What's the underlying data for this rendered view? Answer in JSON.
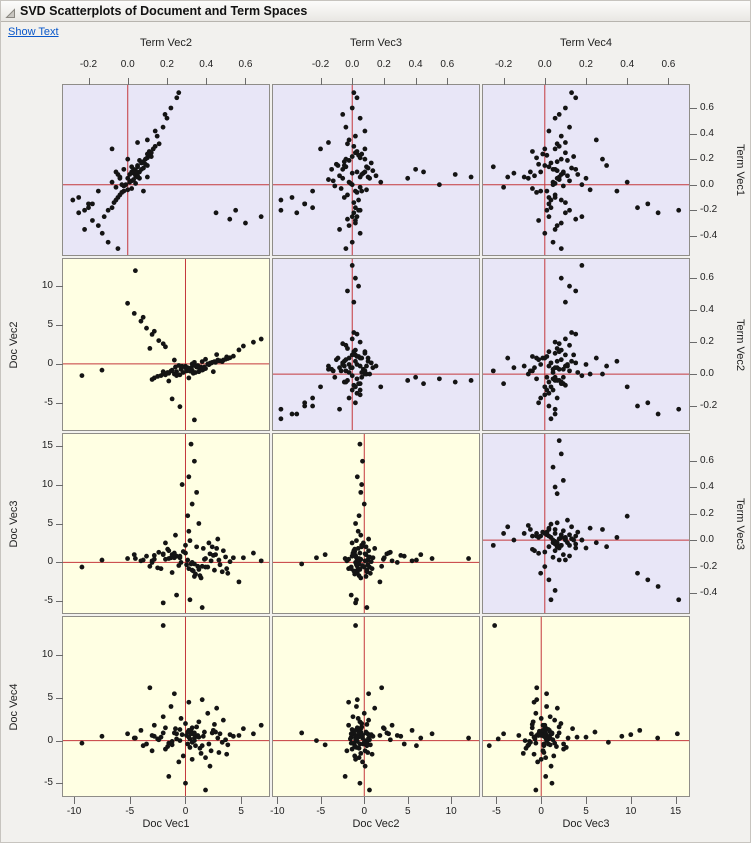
{
  "header": {
    "title": "SVD Scatterplots of Document and Term Spaces",
    "show_text_link": "Show Text"
  },
  "icons": {
    "disclosure": "triangle-lower-right"
  },
  "colors": {
    "term_panel_bg": "#e8e6f7",
    "doc_panel_bg": "#ffffe3",
    "panel_border": "#8f8d88",
    "ref_line": "#c4383c",
    "point": "#141414",
    "link": "#0a58ca",
    "window_bg": "#f2f1ee"
  },
  "chart_data": {
    "type": "scatter",
    "subtype": "scatter-matrix",
    "title": "SVD Scatterplots of Document and Term Spaces",
    "legend": "none",
    "grid": false,
    "reference_lines": {
      "x": 0,
      "y": 0
    },
    "axes": {
      "top": [
        {
          "title": "Term Vec2",
          "range": [
            -0.33,
            0.72
          ],
          "ticks": [
            -0.2,
            0,
            0.2,
            0.4,
            0.6
          ],
          "decimals": 1
        },
        {
          "title": "Term Vec3",
          "range": [
            -0.5,
            0.8
          ],
          "ticks": [
            -0.2,
            0,
            0.2,
            0.4,
            0.6
          ],
          "decimals": 1
        },
        {
          "title": "Term Vec4",
          "range": [
            -0.3,
            0.7
          ],
          "ticks": [
            -0.2,
            0,
            0.2,
            0.4,
            0.6
          ],
          "decimals": 1
        }
      ],
      "bottom": [
        {
          "title": "Doc Vec1",
          "range": [
            -11,
            7.5
          ],
          "ticks": [
            -10,
            -5,
            0,
            5
          ],
          "decimals": 0
        },
        {
          "title": "Doc Vec2",
          "range": [
            -10.5,
            13.2
          ],
          "ticks": [
            -10,
            -5,
            0,
            5,
            10
          ],
          "decimals": 0
        },
        {
          "title": "Doc Vec3",
          "range": [
            -6.5,
            16.5
          ],
          "ticks": [
            -5,
            0,
            5,
            10,
            15
          ],
          "decimals": 0
        }
      ],
      "right": [
        {
          "title": "Term Vec1",
          "range": [
            -0.55,
            0.78
          ],
          "ticks": [
            0.6,
            0.4,
            0.2,
            0,
            -0.2,
            -0.4
          ],
          "decimals": 1
        },
        {
          "title": "Term Vec2",
          "range": [
            -0.35,
            0.72
          ],
          "ticks": [
            0.6,
            0.4,
            0.2,
            0,
            -0.2
          ],
          "decimals": 1
        },
        {
          "title": "Term Vec3",
          "range": [
            -0.55,
            0.8
          ],
          "ticks": [
            0.6,
            0.4,
            0.2,
            0,
            -0.2,
            -0.4
          ],
          "decimals": 1
        }
      ],
      "left": [
        {
          "title": "Doc Vec2",
          "range": [
            -8.5,
            13.5
          ],
          "ticks": [
            10,
            5,
            0,
            -5
          ],
          "decimals": 0
        },
        {
          "title": "Doc Vec3",
          "range": [
            -6.5,
            16.5
          ],
          "ticks": [
            15,
            10,
            5,
            0,
            -5
          ],
          "decimals": 0
        },
        {
          "title": "Doc Vec4",
          "range": [
            -6.5,
            14.5
          ],
          "ticks": [
            10,
            5,
            0,
            -5
          ],
          "decimals": 0
        }
      ]
    },
    "term_vector_labels": [
      "Term Vec1",
      "Term Vec2",
      "Term Vec3",
      "Term Vec4"
    ],
    "doc_vector_labels": [
      "Doc Vec1",
      "Doc Vec2",
      "Doc Vec3",
      "Doc Vec4"
    ],
    "term_points": [
      [
        0.02,
        0.01,
        -0.02,
        0.04
      ],
      [
        0.1,
        0.06,
        0.03,
        -0.02
      ],
      [
        0.18,
        0.08,
        -0.05,
        0.06
      ],
      [
        -0.05,
        -0.02,
        0.06,
        0.01
      ],
      [
        0.25,
        0.12,
        0.02,
        0.1
      ],
      [
        0.07,
        0.04,
        -0.08,
        -0.05
      ],
      [
        -0.12,
        -0.06,
        0.04,
        0.08
      ],
      [
        0.14,
        0.05,
        0.09,
        0.02
      ],
      [
        0.03,
        0.02,
        -0.12,
        0.12
      ],
      [
        0.21,
        0.1,
        0.05,
        -0.04
      ],
      [
        -0.08,
        -0.04,
        -0.03,
        0.05
      ],
      [
        0.3,
        0.14,
        0.01,
        0.07
      ],
      [
        0.05,
        0.0,
        0.11,
        -0.08
      ],
      [
        0.12,
        0.07,
        -0.06,
        0.15
      ],
      [
        -0.18,
        -0.08,
        0.02,
        0.03
      ],
      [
        0.09,
        0.03,
        0.07,
        0.09
      ],
      [
        0.16,
        0.09,
        -0.1,
        -0.03
      ],
      [
        0.0,
        -0.01,
        0.0,
        0.18
      ],
      [
        0.23,
        0.11,
        0.04,
        0.01
      ],
      [
        -0.03,
        0.02,
        -0.07,
        -0.06
      ],
      [
        0.11,
        0.04,
        0.13,
        0.06
      ],
      [
        0.19,
        0.06,
        -0.02,
        0.11
      ],
      [
        0.06,
        0.05,
        0.05,
        -0.1
      ],
      [
        -0.1,
        -0.05,
        -0.05,
        0.02
      ],
      [
        0.28,
        0.13,
        0.08,
        0.05
      ],
      [
        0.04,
        0.03,
        -0.15,
        0.07
      ],
      [
        0.13,
        0.08,
        0.1,
        0.13
      ],
      [
        -0.06,
        -0.03,
        0.03,
        -0.04
      ],
      [
        0.2,
        0.09,
        -0.04,
        0.08
      ],
      [
        0.08,
        0.01,
        0.06,
        0.16
      ],
      [
        0.15,
        0.1,
        -0.09,
        0.0
      ],
      [
        -0.14,
        -0.07,
        0.01,
        0.1
      ],
      [
        0.26,
        0.11,
        0.03,
        -0.06
      ],
      [
        0.01,
        0.04,
        -0.01,
        0.05
      ],
      [
        0.17,
        0.07,
        0.12,
        0.03
      ],
      [
        -0.01,
        -0.02,
        -0.11,
        0.09
      ],
      [
        0.22,
        0.12,
        0.0,
        0.14
      ],
      [
        0.1,
        0.02,
        0.08,
        -0.07
      ],
      [
        0.05,
        0.06,
        -0.06,
        0.2
      ],
      [
        -0.2,
        -0.1,
        0.05,
        0.01
      ],
      [
        0.32,
        0.16,
        -0.03,
        0.06
      ],
      [
        0.07,
        0.05,
        0.15,
        0.11
      ],
      [
        0.12,
        0.03,
        -0.13,
        0.04
      ],
      [
        -0.04,
        0.0,
        0.09,
        0.22
      ],
      [
        0.24,
        0.1,
        0.06,
        -0.01
      ],
      [
        0.38,
        0.15,
        0.02,
        0.08
      ],
      [
        0.45,
        0.18,
        -0.04,
        0.12
      ],
      [
        0.52,
        0.2,
        0.05,
        0.05
      ],
      [
        0.6,
        0.22,
        0.0,
        0.1
      ],
      [
        0.68,
        0.25,
        0.03,
        0.15
      ],
      [
        0.72,
        0.26,
        0.01,
        0.13
      ],
      [
        0.42,
        0.14,
        0.08,
        0.02
      ],
      [
        0.55,
        0.19,
        -0.06,
        0.07
      ],
      [
        -0.25,
        -0.12,
        0.03,
        0.02
      ],
      [
        -0.32,
        -0.15,
        -0.02,
        0.06
      ],
      [
        -0.38,
        -0.13,
        0.05,
        0.0
      ],
      [
        -0.45,
        -0.1,
        0.0,
        0.04
      ],
      [
        -0.5,
        -0.05,
        -0.04,
        0.08
      ],
      [
        -0.28,
        -0.18,
        0.02,
        -0.03
      ],
      [
        -0.35,
        -0.22,
        -0.08,
        0.05
      ],
      [
        -0.22,
        0.45,
        0.01,
        0.1
      ],
      [
        -0.27,
        0.52,
        -0.03,
        0.15
      ],
      [
        -0.3,
        0.6,
        0.02,
        0.08
      ],
      [
        -0.25,
        0.68,
        0.0,
        0.18
      ],
      [
        -0.2,
        0.55,
        0.04,
        0.12
      ],
      [
        0.05,
        -0.04,
        0.35,
        0.06
      ],
      [
        0.1,
        -0.06,
        0.45,
        0.09
      ],
      [
        0.0,
        -0.03,
        0.55,
        0.04
      ],
      [
        0.08,
        -0.05,
        0.65,
        0.08
      ],
      [
        0.12,
        -0.02,
        0.4,
        0.05
      ],
      [
        0.06,
        -0.04,
        0.75,
        0.07
      ],
      [
        -0.15,
        -0.2,
        -0.3,
        0.02
      ],
      [
        -0.1,
        -0.25,
        -0.38,
        0.05
      ],
      [
        -0.05,
        -0.15,
        -0.25,
        -0.02
      ],
      [
        -0.12,
        -0.28,
        -0.45,
        0.03
      ],
      [
        0.28,
        -0.08,
        -0.2,
        0.0
      ],
      [
        0.33,
        0.05,
        -0.15,
        0.1
      ],
      [
        -0.18,
        -0.2,
        -0.25,
        0.45
      ],
      [
        -0.22,
        -0.25,
        -0.35,
        0.55
      ],
      [
        -0.2,
        -0.22,
        -0.45,
        0.65
      ],
      [
        -0.15,
        -0.18,
        -0.3,
        0.5
      ],
      [
        0.15,
        0.05,
        -0.05,
        0.3
      ],
      [
        -0.05,
        0.08,
        0.02,
        0.35
      ],
      [
        0.2,
        0.0,
        0.08,
        0.28
      ],
      [
        0.35,
        0.1,
        -0.02,
        0.25
      ],
      [
        0.02,
        -0.08,
        0.18,
        0.4
      ],
      [
        0.09,
        0.04,
        0.0,
        -0.15
      ],
      [
        -0.02,
        -0.06,
        0.05,
        -0.2
      ],
      [
        0.14,
        0.02,
        -0.04,
        -0.25
      ],
      [
        0.06,
        0.1,
        0.1,
        -0.18
      ]
    ],
    "doc_points": [
      [
        0.2,
        -0.5,
        0.3,
        -0.4
      ],
      [
        1.1,
        -0.2,
        -0.5,
        0.6
      ],
      [
        -0.8,
        -1.0,
        0.8,
        0.2
      ],
      [
        2.3,
        0.1,
        0.2,
        -1.2
      ],
      [
        0.6,
        -0.8,
        -1.0,
        1.5
      ],
      [
        -1.5,
        -1.2,
        1.5,
        -0.3
      ],
      [
        3.1,
        0.4,
        -0.3,
        0.8
      ],
      [
        0.0,
        -0.3,
        2.2,
        2.0
      ],
      [
        1.8,
        -0.6,
        0.5,
        -2.0
      ],
      [
        -2.2,
        -1.5,
        -0.8,
        0.4
      ],
      [
        2.7,
        0.2,
        1.0,
        1.0
      ],
      [
        0.9,
        -1.1,
        -1.5,
        -0.6
      ],
      [
        -0.4,
        -0.7,
        0.0,
        2.6
      ],
      [
        3.6,
        0.6,
        0.7,
        0.1
      ],
      [
        1.4,
        -0.4,
        -2.0,
        -1.5
      ],
      [
        -1.0,
        -1.3,
        1.2,
        0.9
      ],
      [
        2.0,
        0.0,
        -0.6,
        3.2
      ],
      [
        0.4,
        -0.9,
        2.8,
        -0.8
      ],
      [
        -2.8,
        -1.8,
        0.4,
        1.8
      ],
      [
        3.3,
        0.3,
        -1.2,
        -0.2
      ],
      [
        1.6,
        -0.7,
        1.8,
        0.5
      ],
      [
        -0.6,
        -0.2,
        -0.4,
        -2.5
      ],
      [
        2.5,
        -1.0,
        0.9,
        1.2
      ],
      [
        0.8,
        0.2,
        -1.8,
        0.0
      ],
      [
        -1.8,
        -1.4,
        2.5,
        -1.0
      ],
      [
        4.0,
        0.8,
        0.1,
        0.7
      ],
      [
        1.2,
        -0.5,
        -0.9,
        2.2
      ],
      [
        -0.2,
        -1.1,
        1.4,
        -1.8
      ],
      [
        2.9,
        0.5,
        3.0,
        0.3
      ],
      [
        0.5,
        -0.6,
        -0.2,
        1.1
      ],
      [
        -1.3,
        -0.9,
        0.6,
        4.0
      ],
      [
        3.8,
        0.7,
        -1.4,
        -0.5
      ],
      [
        1.0,
        -0.3,
        2.0,
        1.6
      ],
      [
        -2.5,
        -1.6,
        -0.7,
        0.2
      ],
      [
        2.2,
        0.1,
        1.1,
        -3.0
      ],
      [
        0.7,
        -1.2,
        -1.1,
        0.8
      ],
      [
        -0.9,
        -0.4,
        3.5,
        1.4
      ],
      [
        3.0,
        0.4,
        0.3,
        -1.4
      ],
      [
        1.5,
        -0.8,
        -0.5,
        4.8
      ],
      [
        -1.6,
        -1.1,
        1.7,
        -0.7
      ],
      [
        2.6,
        0.3,
        -1.0,
        1.9
      ],
      [
        0.3,
        -0.7,
        4.0,
        0.4
      ],
      [
        -3.0,
        -2.0,
        0.2,
        -1.2
      ],
      [
        3.4,
        0.5,
        1.5,
        2.4
      ],
      [
        1.3,
        -0.6,
        -1.7,
        -0.9
      ],
      [
        -0.5,
        -1.4,
        0.8,
        1.3
      ],
      [
        2.1,
        -0.1,
        2.5,
        -0.4
      ],
      [
        0.1,
        -0.9,
        -0.3,
        0.6
      ],
      [
        -2.0,
        -1.3,
        1.0,
        2.8
      ],
      [
        3.7,
        0.9,
        -0.8,
        -1.6
      ],
      [
        1.7,
        -0.4,
        0.4,
        1.0
      ],
      [
        -1.2,
        -0.8,
        -1.3,
        -0.1
      ],
      [
        2.4,
        0.2,
        2.0,
        0.9
      ],
      [
        0.6,
        -1.0,
        0.0,
        -2.2
      ],
      [
        4.3,
        1.0,
        0.6,
        0.5
      ],
      [
        -5.2,
        7.8,
        0.5,
        0.8
      ],
      [
        -4.6,
        6.5,
        1.0,
        0.3
      ],
      [
        -4.0,
        5.5,
        0.2,
        1.2
      ],
      [
        -3.5,
        4.6,
        0.8,
        -0.4
      ],
      [
        -3.0,
        3.8,
        0.0,
        0.6
      ],
      [
        -2.4,
        3.0,
        1.3,
        0.1
      ],
      [
        -1.8,
        2.2,
        0.4,
        1.5
      ],
      [
        -2.8,
        4.2,
        0.9,
        0.5
      ],
      [
        -3.8,
        6.0,
        0.3,
        -0.6
      ],
      [
        -2.0,
        2.6,
        1.1,
        0.9
      ],
      [
        -4.5,
        12.0,
        0.5,
        0.3
      ],
      [
        -9.3,
        -1.5,
        -0.6,
        -0.3
      ],
      [
        -7.5,
        -0.8,
        0.3,
        0.5
      ],
      [
        5.2,
        2.3,
        0.6,
        1.4
      ],
      [
        6.1,
        2.8,
        1.2,
        0.8
      ],
      [
        6.8,
        3.2,
        0.2,
        1.8
      ],
      [
        -0.5,
        -5.5,
        0.6,
        0.0
      ],
      [
        0.8,
        -7.2,
        -0.2,
        0.9
      ],
      [
        -1.2,
        -4.5,
        1.0,
        -0.5
      ],
      [
        0.5,
        -0.5,
        15.2,
        0.8
      ],
      [
        0.8,
        -0.2,
        13.0,
        0.3
      ],
      [
        0.3,
        -0.8,
        11.0,
        1.2
      ],
      [
        1.0,
        -0.4,
        9.0,
        0.5
      ],
      [
        0.6,
        0.0,
        7.5,
        -0.2
      ],
      [
        0.2,
        -0.6,
        6.0,
        1.0
      ],
      [
        1.2,
        -1.0,
        5.0,
        0.4
      ],
      [
        -0.3,
        -0.3,
        10.0,
        0.7
      ],
      [
        0.4,
        -0.9,
        -4.8,
        0.2
      ],
      [
        1.5,
        0.3,
        -5.8,
        -0.6
      ],
      [
        -0.8,
        -1.5,
        -4.2,
        0.8
      ],
      [
        -2.0,
        -1.0,
        -5.2,
        13.5
      ],
      [
        -1.0,
        0.5,
        0.6,
        5.5
      ],
      [
        0.3,
        -1.8,
        -0.8,
        4.5
      ],
      [
        2.8,
        1.2,
        1.8,
        3.8
      ],
      [
        -3.2,
        2.0,
        -0.5,
        6.2
      ],
      [
        0.0,
        -0.5,
        1.2,
        -5.0
      ],
      [
        1.8,
        0.6,
        -0.6,
        -5.8
      ],
      [
        -1.5,
        -2.2,
        0.5,
        -4.2
      ],
      [
        4.8,
        1.8,
        -2.5,
        0.6
      ]
    ]
  }
}
